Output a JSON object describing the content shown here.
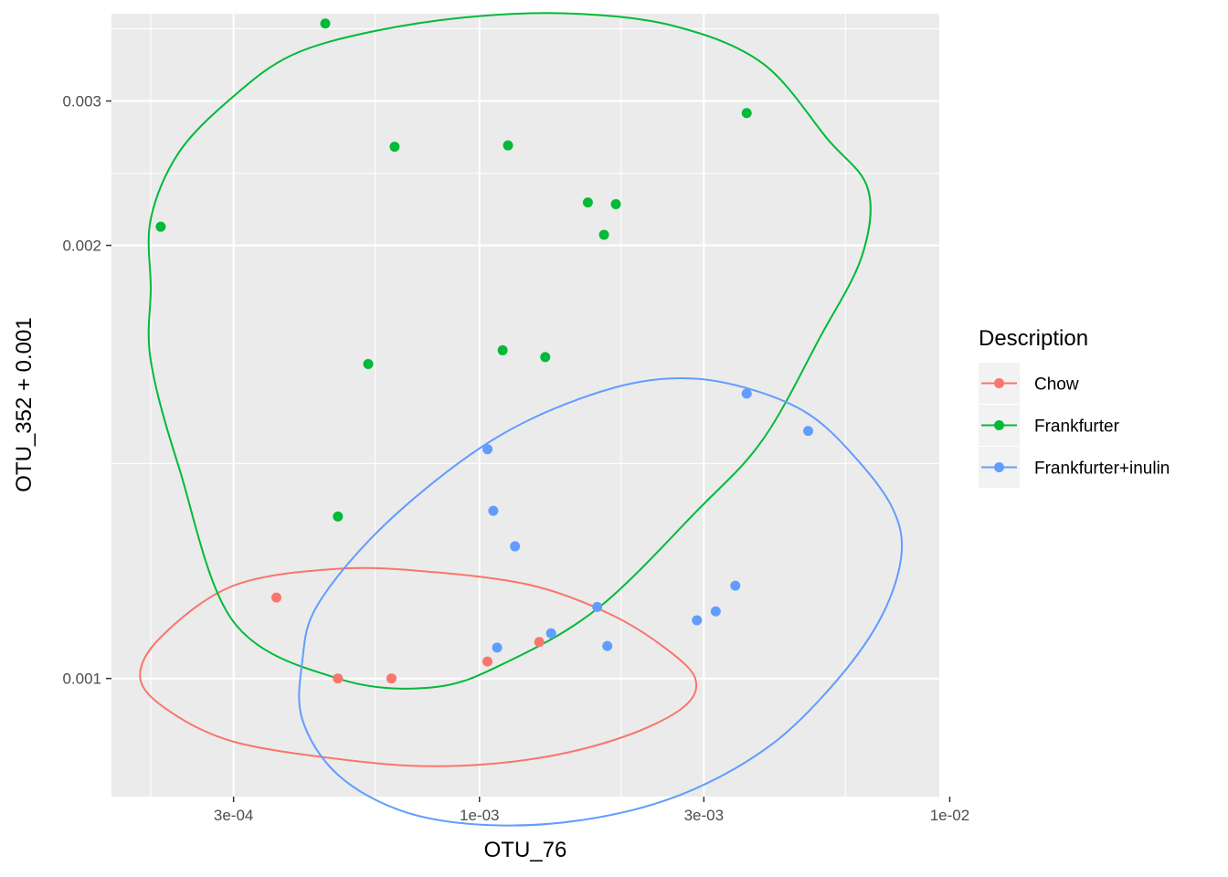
{
  "chart_data": {
    "type": "scatter",
    "xlabel": "OTU_76",
    "ylabel": "OTU_352 + 0.001",
    "x_scale": "log10",
    "y_scale": "reciprocal",
    "xlim": [
      0.000165,
      0.0095
    ],
    "ylim": [
      0.00088,
      0.0043
    ],
    "x_ticks": [
      {
        "value": 0.0003,
        "label": "3e-04"
      },
      {
        "value": 0.001,
        "label": "1e-03"
      },
      {
        "value": 0.003,
        "label": "3e-03"
      },
      {
        "value": 0.01,
        "label": "1e-02"
      }
    ],
    "x_minor_ticks": [
      0.0002,
      0.0006,
      0.002,
      0.006
    ],
    "y_ticks": [
      {
        "value": 0.001,
        "label": "0.001"
      },
      {
        "value": 0.002,
        "label": "0.002"
      },
      {
        "value": 0.003,
        "label": "0.003"
      }
    ],
    "y_minor_ticks": [
      0.00133,
      0.0024,
      0.004
    ],
    "grid": true,
    "legend": {
      "title": "Description",
      "position": "right"
    },
    "series": [
      {
        "name": "Chow",
        "color": "#F8766D",
        "points": [
          {
            "x": 0.00037,
            "y": 0.001103
          },
          {
            "x": 0.0005,
            "y": 0.001
          },
          {
            "x": 0.00065,
            "y": 0.001
          },
          {
            "x": 0.00104,
            "y": 0.00102
          },
          {
            "x": 0.00134,
            "y": 0.001044
          }
        ],
        "ellipse": [
          [
            0.00021,
            0.00105
          ],
          [
            0.0003,
            0.00112
          ],
          [
            0.0005,
            0.001145
          ],
          [
            0.0008,
            0.00114
          ],
          [
            0.0013,
            0.00112
          ],
          [
            0.0019,
            0.00108
          ],
          [
            0.0025,
            0.001035
          ],
          [
            0.00288,
            0.000999
          ],
          [
            0.0027,
            0.000967
          ],
          [
            0.002,
            0.000936
          ],
          [
            0.0013,
            0.000915
          ],
          [
            0.0008,
            0.000908
          ],
          [
            0.0005,
            0.000915
          ],
          [
            0.0003,
            0.000932
          ],
          [
            0.00022,
            0.000963
          ],
          [
            0.00019,
            0.001
          ],
          [
            0.00021,
            0.00105
          ]
        ]
      },
      {
        "name": "Frankfurter",
        "color": "#00BA38",
        "points": [
          {
            "x": 0.00047,
            "y": 0.0041
          },
          {
            "x": 0.00021,
            "y": 0.00209
          },
          {
            "x": 0.00066,
            "y": 0.00259
          },
          {
            "x": 0.00115,
            "y": 0.0026
          },
          {
            "x": 0.0017,
            "y": 0.00222
          },
          {
            "x": 0.00195,
            "y": 0.00221
          },
          {
            "x": 0.00184,
            "y": 0.00205
          },
          {
            "x": 0.0037,
            "y": 0.00288
          },
          {
            "x": 0.00058,
            "y": 0.00157
          },
          {
            "x": 0.00112,
            "y": 0.00161
          },
          {
            "x": 0.00138,
            "y": 0.00159
          },
          {
            "x": 0.0005,
            "y": 0.00123
          }
        ],
        "ellipse": [
          [
            0.0002,
            0.00182
          ],
          [
            0.0002,
            0.00213
          ],
          [
            0.00023,
            0.00255
          ],
          [
            0.0003,
            0.00305
          ],
          [
            0.0004,
            0.00357
          ],
          [
            0.0006,
            0.00396
          ],
          [
            0.001,
            0.00425
          ],
          [
            0.0016,
            0.0043
          ],
          [
            0.0026,
            0.00405
          ],
          [
            0.004,
            0.00345
          ],
          [
            0.0055,
            0.00265
          ],
          [
            0.0067,
            0.0023
          ],
          [
            0.0065,
            0.00195
          ],
          [
            0.0053,
            0.00165
          ],
          [
            0.004,
            0.00138
          ],
          [
            0.0029,
            0.00124
          ],
          [
            0.0018,
            0.00109
          ],
          [
            0.00115,
            0.00102
          ],
          [
            0.0008,
            0.00099
          ],
          [
            0.0005,
            0.001
          ],
          [
            0.0003,
            0.00107
          ],
          [
            0.00023,
            0.00132
          ],
          [
            0.0002,
            0.00158
          ],
          [
            0.0002,
            0.00182
          ]
        ]
      },
      {
        "name": "Frankfurter+inulin",
        "color": "#619CFF",
        "points": [
          {
            "x": 0.00104,
            "y": 0.00136
          },
          {
            "x": 0.00107,
            "y": 0.00124
          },
          {
            "x": 0.00119,
            "y": 0.00118
          },
          {
            "x": 0.00178,
            "y": 0.00109
          },
          {
            "x": 0.00142,
            "y": 0.001055
          },
          {
            "x": 0.00109,
            "y": 0.001037
          },
          {
            "x": 0.00187,
            "y": 0.001039
          },
          {
            "x": 0.0029,
            "y": 0.001072
          },
          {
            "x": 0.00318,
            "y": 0.001084
          },
          {
            "x": 0.0035,
            "y": 0.00112
          },
          {
            "x": 0.0037,
            "y": 0.00149
          },
          {
            "x": 0.005,
            "y": 0.0014
          }
        ],
        "ellipse": [
          [
            0.00045,
            0.00109
          ],
          [
            0.0006,
            0.0012
          ],
          [
            0.0009,
            0.00133
          ],
          [
            0.0013,
            0.00143
          ],
          [
            0.002,
            0.00151
          ],
          [
            0.0028,
            0.00153
          ],
          [
            0.0038,
            0.0015
          ],
          [
            0.005,
            0.00144
          ],
          [
            0.0062,
            0.00135
          ],
          [
            0.0075,
            0.00125
          ],
          [
            0.0079,
            0.00117
          ],
          [
            0.0072,
            0.00108
          ],
          [
            0.0058,
            0.001
          ],
          [
            0.0042,
            0.00093
          ],
          [
            0.0028,
            0.000885
          ],
          [
            0.0018,
            0.000862
          ],
          [
            0.0011,
            0.000855
          ],
          [
            0.0007,
            0.000866
          ],
          [
            0.0005,
            0.0009
          ],
          [
            0.00042,
            0.000955
          ],
          [
            0.00042,
            0.00102
          ],
          [
            0.00045,
            0.00109
          ]
        ]
      }
    ]
  }
}
